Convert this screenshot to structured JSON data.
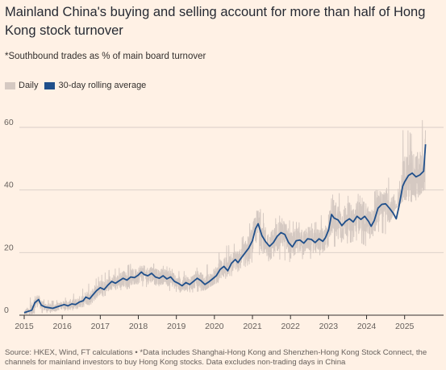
{
  "header": {
    "title": "Mainland China's buying and selling account for more than half of Hong Kong stock turnover",
    "subtitle": "*Southbound trades as % of main board turnover"
  },
  "legend": [
    {
      "label": "Daily",
      "color": "#d5c9c2"
    },
    {
      "label": "30-day rolling average",
      "color": "#1f4f8b"
    }
  ],
  "footer": {
    "source": "Source: HKEX, Wind, FT calculations • *Data includes Shanghai-Hong Kong and Shenzhen-Hong Kong Stock Connect, the channels for mainland investors to buy Hong Kong stocks. Data excludes non-trading days in China"
  },
  "chart_data": {
    "type": "line",
    "title": "Mainland China's buying and selling account for more than half of Hong Kong stock turnover",
    "subtitle": "*Southbound trades as % of main board turnover",
    "xlabel": "",
    "ylabel": "",
    "xlim": [
      2015.0,
      2025.6
    ],
    "ylim": [
      0,
      60
    ],
    "x_ticks": [
      2015,
      2016,
      2017,
      2018,
      2019,
      2020,
      2021,
      2022,
      2023,
      2024,
      2025
    ],
    "x_tick_labels": [
      "2015",
      "2016",
      "2017",
      "2018",
      "2019",
      "2020",
      "2021",
      "2022",
      "2023",
      "2024",
      "2025"
    ],
    "y_ticks": [
      0,
      20,
      40,
      60
    ],
    "y_tick_labels": [
      "0",
      "20",
      "40",
      "60"
    ],
    "grid": "horizontal",
    "legend_position": "top-left",
    "series": [
      {
        "name": "30-day rolling average",
        "color": "#1f4f8b",
        "x": [
          2015.0,
          2015.1,
          2015.2,
          2015.28,
          2015.38,
          2015.45,
          2015.55,
          2015.65,
          2015.75,
          2015.85,
          2015.95,
          2016.05,
          2016.15,
          2016.25,
          2016.35,
          2016.45,
          2016.55,
          2016.62,
          2016.72,
          2016.8,
          2016.9,
          2017.0,
          2017.1,
          2017.2,
          2017.3,
          2017.4,
          2017.5,
          2017.6,
          2017.7,
          2017.8,
          2017.9,
          2018.0,
          2018.08,
          2018.15,
          2018.25,
          2018.35,
          2018.45,
          2018.55,
          2018.65,
          2018.75,
          2018.85,
          2018.95,
          2019.05,
          2019.15,
          2019.25,
          2019.35,
          2019.45,
          2019.55,
          2019.65,
          2019.75,
          2019.85,
          2019.95,
          2020.05,
          2020.15,
          2020.25,
          2020.35,
          2020.45,
          2020.55,
          2020.62,
          2020.7,
          2020.8,
          2020.9,
          2021.0,
          2021.08,
          2021.15,
          2021.25,
          2021.35,
          2021.45,
          2021.55,
          2021.65,
          2021.75,
          2021.85,
          2021.95,
          2022.05,
          2022.15,
          2022.25,
          2022.35,
          2022.45,
          2022.55,
          2022.65,
          2022.75,
          2022.85,
          2022.92,
          2023.0,
          2023.08,
          2023.15,
          2023.25,
          2023.35,
          2023.45,
          2023.55,
          2023.65,
          2023.75,
          2023.85,
          2023.95,
          2024.05,
          2024.12,
          2024.2,
          2024.3,
          2024.4,
          2024.5,
          2024.6,
          2024.7,
          2024.78,
          2024.85,
          2024.95,
          2025.0,
          2025.1,
          2025.2,
          2025.3,
          2025.4,
          2025.5,
          2025.55
        ],
        "values": [
          0.8,
          1.2,
          1.6,
          4.0,
          5.0,
          3.2,
          2.6,
          2.4,
          2.2,
          2.6,
          3.0,
          3.4,
          3.0,
          3.6,
          3.4,
          4.2,
          4.6,
          5.8,
          5.2,
          6.4,
          7.8,
          8.8,
          8.2,
          9.6,
          10.8,
          10.2,
          11.0,
          11.8,
          11.2,
          12.2,
          12.0,
          12.8,
          13.8,
          13.0,
          12.6,
          13.4,
          12.2,
          11.8,
          12.6,
          11.6,
          12.2,
          10.8,
          10.2,
          9.4,
          10.4,
          9.8,
          10.8,
          11.8,
          11.0,
          9.8,
          10.6,
          11.6,
          12.6,
          14.6,
          15.6,
          14.2,
          16.6,
          17.8,
          16.8,
          18.2,
          19.8,
          21.4,
          23.8,
          27.6,
          29.2,
          25.4,
          23.4,
          22.0,
          23.2,
          25.2,
          26.4,
          25.8,
          23.2,
          21.8,
          23.8,
          24.0,
          23.0,
          24.4,
          24.2,
          23.2,
          24.4,
          23.6,
          24.8,
          27.2,
          32.2,
          31.0,
          30.4,
          28.6,
          30.0,
          30.8,
          29.8,
          31.6,
          30.6,
          31.6,
          30.0,
          28.4,
          30.2,
          34.2,
          35.4,
          35.6,
          34.2,
          32.6,
          30.8,
          34.6,
          41.2,
          42.6,
          44.6,
          45.4,
          44.2,
          44.8,
          46.0,
          54.6
        ]
      },
      {
        "name": "Daily",
        "color": "#d5c9c2",
        "description_of_shape": "noisy daily series surrounding the rolling average, typically within ±4-8 points, peaks near 63",
        "x": [
          2015.0,
          2015.25,
          2015.5,
          2015.75,
          2016.0,
          2016.25,
          2016.5,
          2016.75,
          2017.0,
          2017.25,
          2017.5,
          2017.75,
          2018.0,
          2018.25,
          2018.5,
          2018.75,
          2019.0,
          2019.25,
          2019.5,
          2019.75,
          2020.0,
          2020.25,
          2020.5,
          2020.75,
          2021.0,
          2021.1,
          2021.25,
          2021.5,
          2021.75,
          2022.0,
          2022.25,
          2022.5,
          2022.75,
          2023.0,
          2023.25,
          2023.5,
          2023.75,
          2024.0,
          2024.25,
          2024.5,
          2024.75,
          2025.0,
          2025.25,
          2025.5
        ],
        "min_values": [
          0,
          0.5,
          0.8,
          0.8,
          1.5,
          1.5,
          2.5,
          3.5,
          5.5,
          7.0,
          8.0,
          8.5,
          9.5,
          9.0,
          8.5,
          8.0,
          7.5,
          7.0,
          7.5,
          8.0,
          10.0,
          11.0,
          13.0,
          15.0,
          17.0,
          21.0,
          18.0,
          17.0,
          18.0,
          17.0,
          18.0,
          18.0,
          19.0,
          22.0,
          22.0,
          23.0,
          24.0,
          22.0,
          27.0,
          26.0,
          34.0,
          37.0,
          36.0,
          40.0
        ],
        "max_values": [
          2.0,
          7.5,
          5.0,
          4.5,
          5.0,
          6.5,
          8.0,
          10.5,
          12.5,
          14.5,
          15.0,
          16.0,
          17.5,
          17.0,
          16.0,
          15.5,
          14.0,
          14.0,
          15.0,
          15.5,
          18.0,
          22.0,
          22.5,
          25.0,
          31.0,
          36.0,
          33.0,
          30.0,
          32.0,
          30.0,
          29.5,
          29.0,
          30.0,
          38.0,
          39.0,
          38.0,
          39.0,
          36.0,
          40.0,
          39.0,
          54.0,
          60.0,
          57.0,
          63.0
        ]
      }
    ]
  }
}
